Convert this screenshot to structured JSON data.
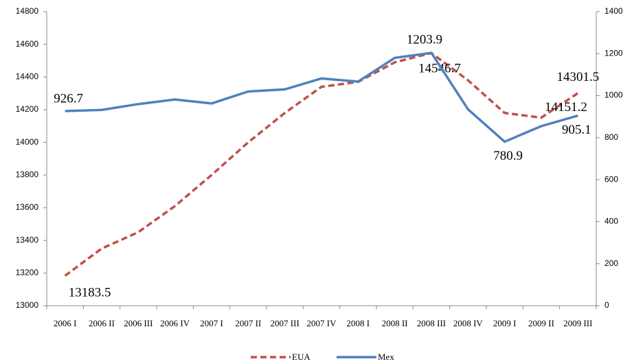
{
  "chart_data": {
    "type": "line",
    "categories": [
      "2006 I",
      "2006 II",
      "2006 III",
      "2006 IV",
      "2007 I",
      "2007 II",
      "2007 III",
      "2007 IV",
      "2008 I",
      "2008 II",
      "2008 III",
      "2008 IV",
      "2009 I",
      "2009 II",
      "2009 III"
    ],
    "series": [
      {
        "name": "EUA",
        "color": "#c0504d",
        "dashed": true,
        "values": [
          13183.5,
          13350,
          13450,
          13610,
          13800,
          14000,
          14180,
          14340,
          14370,
          14490,
          14546.7,
          14380,
          14180,
          14151.2,
          14301.5
        ],
        "value_labels": [
          "13183.5",
          null,
          null,
          null,
          null,
          null,
          null,
          null,
          null,
          null,
          "14546.7",
          null,
          null,
          "14151.2",
          "14301.5"
        ]
      },
      {
        "name": "Mex",
        "color": "#4f81bd",
        "axis": "y2",
        "values": [
          926.7,
          932,
          960,
          982,
          963,
          1020,
          1030,
          1082,
          1067,
          1180,
          1203.9,
          935,
          780.9,
          855,
          905.1
        ],
        "value_labels": [
          "926.7",
          null,
          null,
          null,
          null,
          null,
          null,
          null,
          null,
          null,
          "1203.9",
          null,
          "780.9",
          null,
          "905.1"
        ]
      }
    ],
    "ylim": [
      13000,
      14800
    ],
    "yticks": [
      13000,
      13200,
      13400,
      13600,
      13800,
      14000,
      14200,
      14400,
      14600,
      14800
    ],
    "y2lim": [
      0,
      1400
    ],
    "y2ticks": [
      0,
      200,
      400,
      600,
      800,
      1000,
      1200,
      1400
    ],
    "legend": "bottom"
  }
}
